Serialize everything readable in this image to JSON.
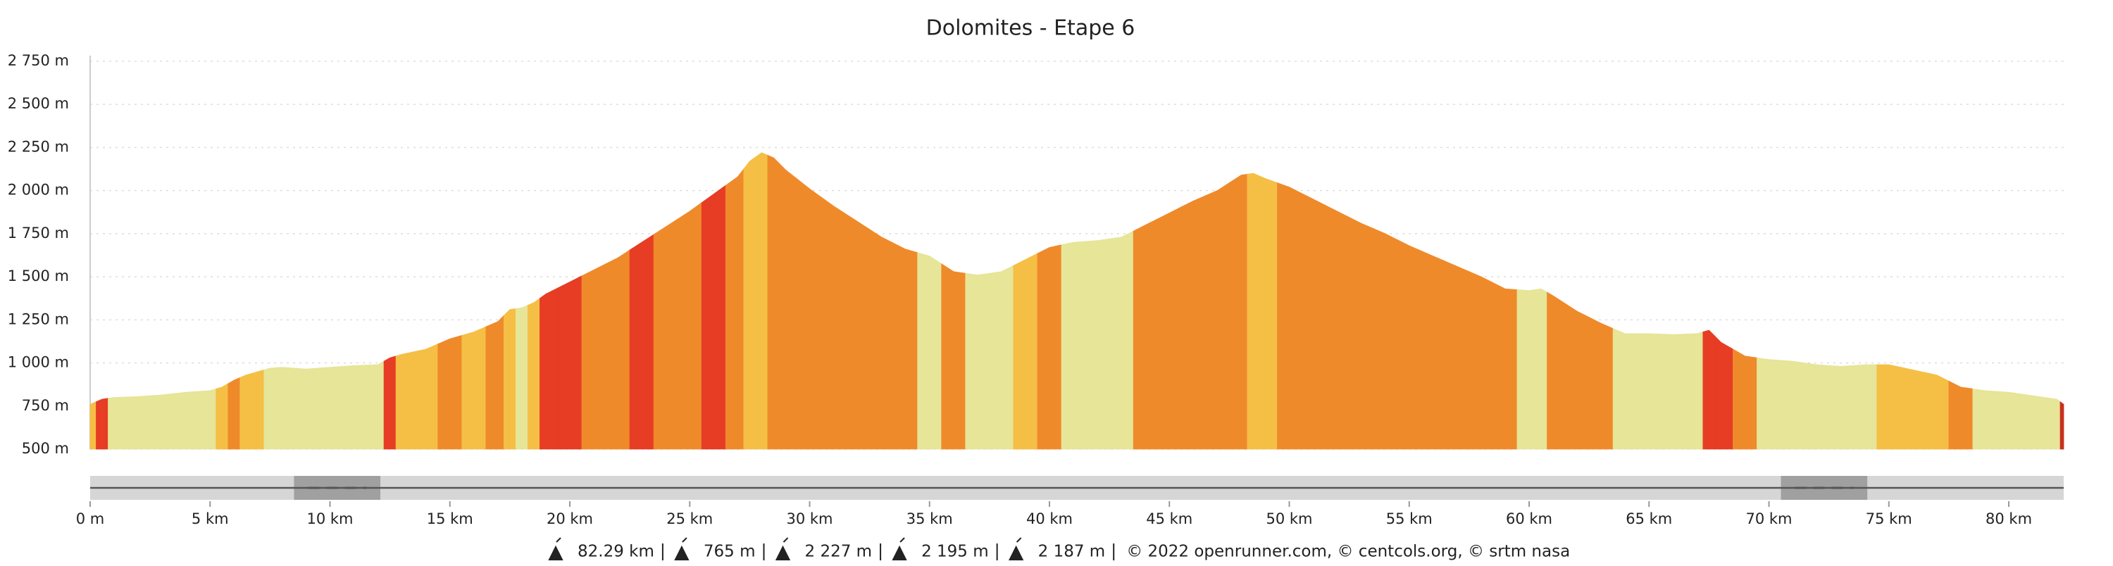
{
  "chart_data": {
    "type": "elevation",
    "title": "Dolomites - Etape 6",
    "x": [
      0,
      0.5,
      1,
      2,
      3,
      4,
      5,
      5.5,
      6,
      6.5,
      7,
      7.5,
      8,
      9,
      10,
      11,
      12,
      12.5,
      13,
      14,
      15,
      16,
      17,
      17.5,
      18,
      18.5,
      19,
      20,
      21,
      22,
      23,
      24,
      25,
      26,
      27,
      27.5,
      28,
      28.5,
      29,
      30,
      31,
      32,
      33,
      34,
      35,
      36,
      37,
      38,
      39,
      40,
      41,
      42,
      43,
      44,
      45,
      46,
      47,
      48,
      48.5,
      49,
      50,
      51,
      52,
      53,
      54,
      55,
      56,
      57,
      58,
      59,
      60,
      60.5,
      61,
      62,
      63,
      64,
      65,
      66,
      67,
      67.5,
      68,
      69,
      70,
      71,
      72,
      73,
      74,
      75,
      76,
      77,
      78,
      79,
      80,
      81,
      82,
      82.29
    ],
    "values": [
      760,
      790,
      800,
      805,
      815,
      830,
      840,
      860,
      900,
      930,
      950,
      970,
      975,
      965,
      975,
      985,
      990,
      1030,
      1050,
      1080,
      1140,
      1180,
      1240,
      1310,
      1320,
      1350,
      1400,
      1470,
      1540,
      1610,
      1700,
      1790,
      1880,
      1980,
      2080,
      2170,
      2220,
      2190,
      2120,
      2010,
      1910,
      1820,
      1730,
      1660,
      1620,
      1530,
      1510,
      1530,
      1600,
      1670,
      1700,
      1710,
      1730,
      1800,
      1870,
      1940,
      2000,
      2090,
      2100,
      2070,
      2020,
      1950,
      1880,
      1810,
      1750,
      1680,
      1620,
      1560,
      1500,
      1430,
      1420,
      1430,
      1390,
      1300,
      1230,
      1170,
      1170,
      1165,
      1170,
      1190,
      1120,
      1040,
      1020,
      1010,
      990,
      980,
      990,
      990,
      960,
      930,
      860,
      840,
      830,
      810,
      790,
      760
    ],
    "colors": [
      "#f5bf45",
      "#e63d24",
      "#e6e598",
      "#e6e598",
      "#e6e598",
      "#e6e598",
      "#e6e598",
      "#f5bf45",
      "#ef8a2b",
      "#f5bf45",
      "#f5bf45",
      "#e6e598",
      "#e6e598",
      "#e6e598",
      "#e6e598",
      "#e6e598",
      "#e6e598",
      "#e63d24",
      "#f5bf45",
      "#f5bf45",
      "#ef8a2b",
      "#f5bf45",
      "#ef8a2b",
      "#f5bf45",
      "#e6e598",
      "#f5bf45",
      "#e63d24",
      "#e63d24",
      "#ef8a2b",
      "#ef8a2b",
      "#e63d24",
      "#ef8a2b",
      "#ef8a2b",
      "#e63d24",
      "#ef8a2b",
      "#f5bf45",
      "#f5bf45",
      "#ef8a2b",
      "#ef8a2b",
      "#ef8a2b",
      "#ef8a2b",
      "#ef8a2b",
      "#ef8a2b",
      "#ef8a2b",
      "#e6e598",
      "#ef8a2b",
      "#e6e598",
      "#e6e598",
      "#f5bf45",
      "#ef8a2b",
      "#e6e598",
      "#e6e598",
      "#e6e598",
      "#ef8a2b",
      "#ef8a2b",
      "#ef8a2b",
      "#ef8a2b",
      "#ef8a2b",
      "#f5bf45",
      "#f5bf45",
      "#ef8a2b",
      "#ef8a2b",
      "#ef8a2b",
      "#ef8a2b",
      "#ef8a2b",
      "#ef8a2b",
      "#ef8a2b",
      "#ef8a2b",
      "#ef8a2b",
      "#ef8a2b",
      "#e6e598",
      "#e6e598",
      "#ef8a2b",
      "#ef8a2b",
      "#ef8a2b",
      "#e6e598",
      "#e6e598",
      "#e6e598",
      "#e6e598",
      "#e63d24",
      "#e63d24",
      "#ef8a2b",
      "#e6e598",
      "#e6e598",
      "#e6e598",
      "#e6e598",
      "#e6e598",
      "#f5bf45",
      "#f5bf45",
      "#f5bf45",
      "#ef8a2b",
      "#e6e598",
      "#e6e598",
      "#e6e598",
      "#e6e598",
      "#c8301c"
    ],
    "xlim": [
      0,
      82.29
    ],
    "ylim": [
      500,
      2750
    ],
    "xticks": [
      {
        "value": 0,
        "label": "0 m"
      },
      {
        "value": 5,
        "label": "5 km"
      },
      {
        "value": 10,
        "label": "10 km"
      },
      {
        "value": 15,
        "label": "15 km"
      },
      {
        "value": 20,
        "label": "20 km"
      },
      {
        "value": 25,
        "label": "25 km"
      },
      {
        "value": 30,
        "label": "30 km"
      },
      {
        "value": 35,
        "label": "35 km"
      },
      {
        "value": 40,
        "label": "40 km"
      },
      {
        "value": 45,
        "label": "45 km"
      },
      {
        "value": 50,
        "label": "50 km"
      },
      {
        "value": 55,
        "label": "55 km"
      },
      {
        "value": 60,
        "label": "60 km"
      },
      {
        "value": 65,
        "label": "65 km"
      },
      {
        "value": 70,
        "label": "70 km"
      },
      {
        "value": 75,
        "label": "75 km"
      },
      {
        "value": 80,
        "label": "80 km"
      }
    ],
    "yticks": [
      {
        "value": 500,
        "label": "500 m"
      },
      {
        "value": 750,
        "label": "750 m"
      },
      {
        "value": 1000,
        "label": "1 000 m"
      },
      {
        "value": 1250,
        "label": "1 250 m"
      },
      {
        "value": 1500,
        "label": "1 500 m"
      },
      {
        "value": 1750,
        "label": "1 750 m"
      },
      {
        "value": 2000,
        "label": "2 000 m"
      },
      {
        "value": 2250,
        "label": "2 250 m"
      },
      {
        "value": 2500,
        "label": "2 500 m"
      },
      {
        "value": 2750,
        "label": "2 750 m"
      }
    ],
    "grid": true,
    "stats": [
      "82.29 km",
      "765 m",
      "2 227 m",
      "2 195 m",
      "2 187 m"
    ],
    "credits": "© 2022 openrunner.com, © centcols.org, © srtm nasa"
  }
}
